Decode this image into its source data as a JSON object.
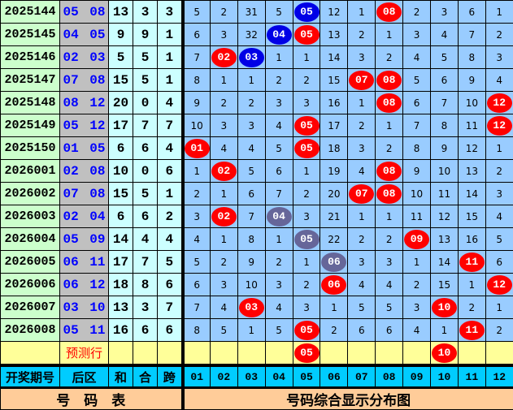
{
  "colors": {
    "red": "#ff0000",
    "blue": "#0000e6",
    "grey": "#666699"
  },
  "rows": [
    {
      "period": "2025144",
      "back": "05 08",
      "sum": "13",
      "he": "3",
      "kua": "3",
      "cells": [
        "5",
        "2",
        "31",
        "5",
        {
          "v": "05",
          "c": "blue"
        },
        "12",
        "1",
        {
          "v": "08",
          "c": "red"
        },
        "2",
        "3",
        "6",
        "1"
      ]
    },
    {
      "period": "2025145",
      "back": "04 05",
      "sum": "9",
      "he": "9",
      "kua": "1",
      "cells": [
        "6",
        "3",
        "32",
        {
          "v": "04",
          "c": "blue"
        },
        {
          "v": "05",
          "c": "red"
        },
        "13",
        "2",
        "1",
        "3",
        "4",
        "7",
        "2"
      ]
    },
    {
      "period": "2025146",
      "back": "02 03",
      "sum": "5",
      "he": "5",
      "kua": "1",
      "cells": [
        "7",
        {
          "v": "02",
          "c": "red"
        },
        {
          "v": "03",
          "c": "blue"
        },
        "1",
        "1",
        "14",
        "3",
        "2",
        "4",
        "5",
        "8",
        "3"
      ]
    },
    {
      "period": "2025147",
      "back": "07 08",
      "sum": "15",
      "he": "5",
      "kua": "1",
      "cells": [
        "8",
        "1",
        "1",
        "2",
        "2",
        "15",
        {
          "v": "07",
          "c": "red"
        },
        {
          "v": "08",
          "c": "red"
        },
        "5",
        "6",
        "9",
        "4"
      ]
    },
    {
      "period": "2025148",
      "back": "08 12",
      "sum": "20",
      "he": "0",
      "kua": "4",
      "cells": [
        "9",
        "2",
        "2",
        "3",
        "3",
        "16",
        "1",
        {
          "v": "08",
          "c": "red"
        },
        "6",
        "7",
        "10",
        {
          "v": "12",
          "c": "red"
        }
      ]
    },
    {
      "period": "2025149",
      "back": "05 12",
      "sum": "17",
      "he": "7",
      "kua": "7",
      "cells": [
        "10",
        "3",
        "3",
        "4",
        {
          "v": "05",
          "c": "red"
        },
        "17",
        "2",
        "1",
        "7",
        "8",
        "11",
        {
          "v": "12",
          "c": "red"
        }
      ]
    },
    {
      "period": "2025150",
      "back": "01 05",
      "sum": "6",
      "he": "6",
      "kua": "4",
      "cells": [
        {
          "v": "01",
          "c": "red"
        },
        "4",
        "4",
        "5",
        {
          "v": "05",
          "c": "red"
        },
        "18",
        "3",
        "2",
        "8",
        "9",
        "12",
        "1"
      ]
    },
    {
      "period": "2026001",
      "back": "02 08",
      "sum": "10",
      "he": "0",
      "kua": "6",
      "cells": [
        "1",
        {
          "v": "02",
          "c": "red"
        },
        "5",
        "6",
        "1",
        "19",
        "4",
        {
          "v": "08",
          "c": "red"
        },
        "9",
        "10",
        "13",
        "2"
      ]
    },
    {
      "period": "2026002",
      "back": "07 08",
      "sum": "15",
      "he": "5",
      "kua": "1",
      "cells": [
        "2",
        "1",
        "6",
        "7",
        "2",
        "20",
        {
          "v": "07",
          "c": "red"
        },
        {
          "v": "08",
          "c": "red"
        },
        "10",
        "11",
        "14",
        "3"
      ]
    },
    {
      "period": "2026003",
      "back": "02 04",
      "sum": "6",
      "he": "6",
      "kua": "2",
      "cells": [
        "3",
        {
          "v": "02",
          "c": "red"
        },
        "7",
        {
          "v": "04",
          "c": "grey"
        },
        "3",
        "21",
        "1",
        "1",
        "11",
        "12",
        "15",
        "4"
      ]
    },
    {
      "period": "2026004",
      "back": "05 09",
      "sum": "14",
      "he": "4",
      "kua": "4",
      "cells": [
        "4",
        "1",
        "8",
        "1",
        {
          "v": "05",
          "c": "grey"
        },
        "22",
        "2",
        "2",
        {
          "v": "09",
          "c": "red"
        },
        "13",
        "16",
        "5"
      ]
    },
    {
      "period": "2026005",
      "back": "06 11",
      "sum": "17",
      "he": "7",
      "kua": "5",
      "cells": [
        "5",
        "2",
        "9",
        "2",
        "1",
        {
          "v": "06",
          "c": "grey"
        },
        "3",
        "3",
        "1",
        "14",
        {
          "v": "11",
          "c": "red"
        },
        "6"
      ]
    },
    {
      "period": "2026006",
      "back": "06 12",
      "sum": "18",
      "he": "8",
      "kua": "6",
      "cells": [
        "6",
        "3",
        "10",
        "3",
        "2",
        {
          "v": "06",
          "c": "red"
        },
        "4",
        "4",
        "2",
        "15",
        "1",
        {
          "v": "12",
          "c": "red"
        }
      ]
    },
    {
      "period": "2026007",
      "back": "03 10",
      "sum": "13",
      "he": "3",
      "kua": "7",
      "cells": [
        "7",
        "4",
        {
          "v": "03",
          "c": "red"
        },
        "4",
        "3",
        "1",
        "5",
        "5",
        "3",
        {
          "v": "10",
          "c": "red"
        },
        "2",
        "1"
      ]
    },
    {
      "period": "2026008",
      "back": "05 11",
      "sum": "16",
      "he": "6",
      "kua": "6",
      "cells": [
        "8",
        "5",
        "1",
        "5",
        {
          "v": "05",
          "c": "red"
        },
        "2",
        "6",
        "6",
        "4",
        "1",
        {
          "v": "11",
          "c": "red"
        },
        "2"
      ]
    }
  ],
  "prediction": {
    "label": "预测行",
    "cells": [
      "",
      "",
      "",
      "",
      {
        "v": "05",
        "c": "red"
      },
      "",
      "",
      "",
      "",
      {
        "v": "10",
        "c": "red"
      },
      "",
      ""
    ]
  },
  "header": {
    "period": "开奖期号",
    "back": "后区",
    "sum": "和",
    "he": "合",
    "kua": "跨",
    "numbers": [
      "01",
      "02",
      "03",
      "04",
      "05",
      "06",
      "07",
      "08",
      "09",
      "10",
      "11",
      "12"
    ]
  },
  "footer": {
    "left": "号　码　表",
    "right": "号码综合显示分布图"
  }
}
